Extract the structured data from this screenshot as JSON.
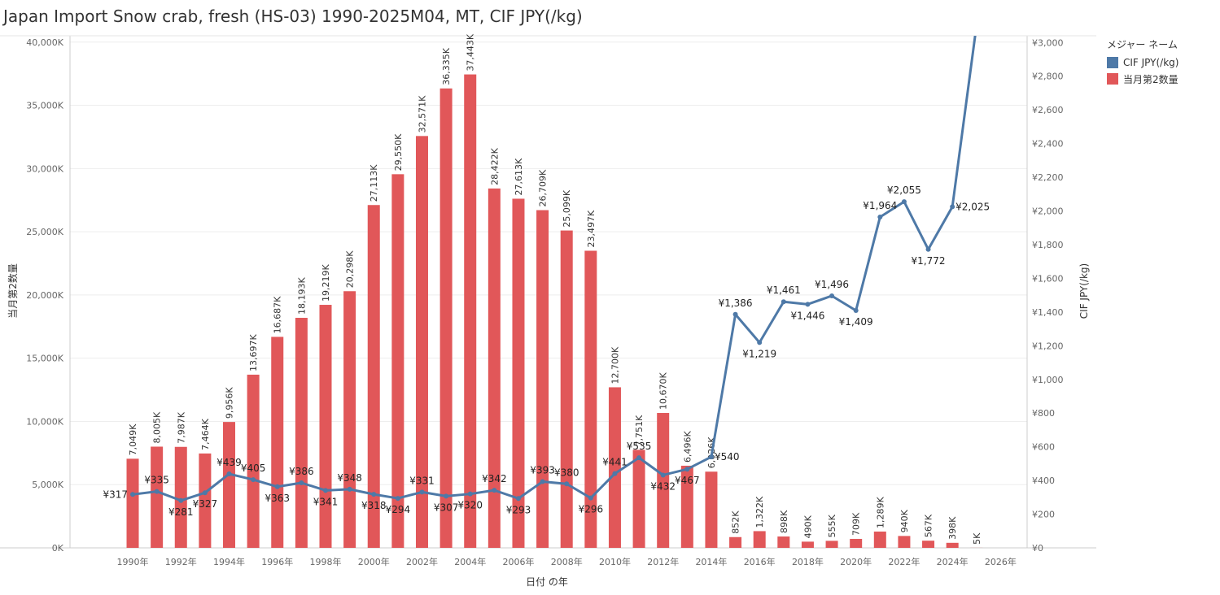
{
  "title": "Japan Import Snow crab, fresh (HS-03) 1990-2025M04, MT, CIF JPY(/kg)",
  "legend": {
    "title": "メジャー ネーム",
    "items": [
      {
        "label": "CIF JPY(/kg)",
        "color": "#4e79a7"
      },
      {
        "label": "当月第2数量",
        "color": "#e15759"
      }
    ]
  },
  "chart_data": {
    "type": "bar",
    "xlabel": "日付 の年",
    "ylabel_left": "当月第2数量",
    "ylabel_right": "CIF JPY(/kg)",
    "left_ylim": [
      0,
      40500
    ],
    "right_ylim": [
      0,
      3040
    ],
    "x_range": [
      1987.4,
      2027.1
    ],
    "x_tick_years": [
      1990,
      1992,
      1994,
      1996,
      1998,
      2000,
      2002,
      2004,
      2006,
      2008,
      2010,
      2012,
      2014,
      2016,
      2018,
      2020,
      2022,
      2024,
      2026
    ],
    "x_tick_labels": [
      "1990年",
      "1992年",
      "1994年",
      "1996年",
      "1998年",
      "2000年",
      "2002年",
      "2004年",
      "2006年",
      "2008年",
      "2010年",
      "2012年",
      "2014年",
      "2016年",
      "2018年",
      "2020年",
      "2022年",
      "2024年",
      "2026年"
    ],
    "left_ticks": [
      {
        "value": 0,
        "label": "0K"
      },
      {
        "value": 5000,
        "label": "5,000K"
      },
      {
        "value": 10000,
        "label": "10,000K"
      },
      {
        "value": 15000,
        "label": "15,000K"
      },
      {
        "value": 20000,
        "label": "20,000K"
      },
      {
        "value": 25000,
        "label": "25,000K"
      },
      {
        "value": 30000,
        "label": "30,000K"
      },
      {
        "value": 35000,
        "label": "35,000K"
      },
      {
        "value": 40000,
        "label": "40,000K"
      }
    ],
    "right_ticks": [
      {
        "value": 0,
        "label": "¥0"
      },
      {
        "value": 200,
        "label": "¥200"
      },
      {
        "value": 400,
        "label": "¥400"
      },
      {
        "value": 600,
        "label": "¥600"
      },
      {
        "value": 800,
        "label": "¥800"
      },
      {
        "value": 1000,
        "label": "¥1,000"
      },
      {
        "value": 1200,
        "label": "¥1,200"
      },
      {
        "value": 1400,
        "label": "¥1,400"
      },
      {
        "value": 1600,
        "label": "¥1,600"
      },
      {
        "value": 1800,
        "label": "¥1,800"
      },
      {
        "value": 2000,
        "label": "¥2,000"
      },
      {
        "value": 2200,
        "label": "¥2,200"
      },
      {
        "value": 2400,
        "label": "¥2,400"
      },
      {
        "value": 2600,
        "label": "¥2,600"
      },
      {
        "value": 2800,
        "label": "¥2,800"
      },
      {
        "value": 3000,
        "label": "¥3,000"
      }
    ],
    "years": [
      1990,
      1991,
      1992,
      1993,
      1994,
      1995,
      1996,
      1997,
      1998,
      1999,
      2000,
      2001,
      2002,
      2003,
      2004,
      2005,
      2006,
      2007,
      2008,
      2009,
      2010,
      2011,
      2012,
      2013,
      2014,
      2015,
      2016,
      2017,
      2018,
      2019,
      2020,
      2021,
      2022,
      2023,
      2024,
      2025
    ],
    "series": [
      {
        "name": "当月第2数量",
        "kind": "bar",
        "axis": "left",
        "values": [
          7049,
          8005,
          7987,
          7464,
          9956,
          13697,
          16687,
          18193,
          19219,
          20298,
          27113,
          29550,
          32571,
          36335,
          37443,
          28422,
          27613,
          26709,
          25099,
          23497,
          12700,
          7751,
          10670,
          6496,
          6026,
          852,
          1322,
          898,
          490,
          555,
          709,
          1289,
          940,
          567,
          398,
          5
        ],
        "labels": [
          "7,049K",
          "8,005K",
          "7,987K",
          "7,464K",
          "9,956K",
          "13,697K",
          "16,687K",
          "18,193K",
          "19,219K",
          "20,298K",
          "27,113K",
          "29,550K",
          "32,571K",
          "36,335K",
          "37,443K",
          "28,422K",
          "27,613K",
          "26,709K",
          "25,099K",
          "23,497K",
          "12,700K",
          "7,751K",
          "10,670K",
          "6,496K",
          "6,026K",
          "852K",
          "1,322K",
          "898K",
          "490K",
          "555K",
          "709K",
          "1,289K",
          "940K",
          "567K",
          "398K",
          "5K"
        ]
      },
      {
        "name": "CIF JPY(/kg)",
        "kind": "line",
        "axis": "right",
        "values": [
          317,
          335,
          281,
          327,
          439,
          405,
          363,
          386,
          341,
          348,
          318,
          294,
          331,
          307,
          320,
          342,
          293,
          393,
          380,
          296,
          441,
          535,
          432,
          467,
          540,
          1386,
          1219,
          1461,
          1446,
          1496,
          1409,
          1964,
          2055,
          1772,
          2025,
          3100
        ],
        "labels": [
          "¥317",
          "¥335",
          "¥281",
          "¥327",
          "¥439",
          "¥405",
          "¥363",
          "¥386",
          "¥341",
          "¥348",
          "¥318",
          "¥294",
          "¥331",
          "¥307",
          "¥320",
          "¥342",
          "¥293",
          "¥393",
          "¥380",
          "¥296",
          "¥441",
          "¥535",
          "¥432",
          "¥467",
          "¥540",
          "¥1,386",
          "¥1,219",
          "¥1,461",
          "¥1,446",
          "¥1,496",
          "¥1,409",
          "¥1,964",
          "¥2,055",
          "¥1,772",
          "¥2,025",
          ""
        ],
        "label_pos": [
          "left",
          "top",
          "bottom",
          "bottom",
          "top",
          "top",
          "bottom",
          "top",
          "bottom",
          "top",
          "bottom",
          "bottom",
          "top",
          "bottom",
          "bottom",
          "top",
          "bottom",
          "top",
          "top",
          "bottom",
          "top",
          "top",
          "bottom",
          "bottom",
          "right",
          "top",
          "bottom",
          "top",
          "bottom",
          "top",
          "bottom",
          "top",
          "top",
          "bottom",
          "right",
          "none"
        ]
      }
    ],
    "grid": true,
    "legend_position": "top-right"
  }
}
